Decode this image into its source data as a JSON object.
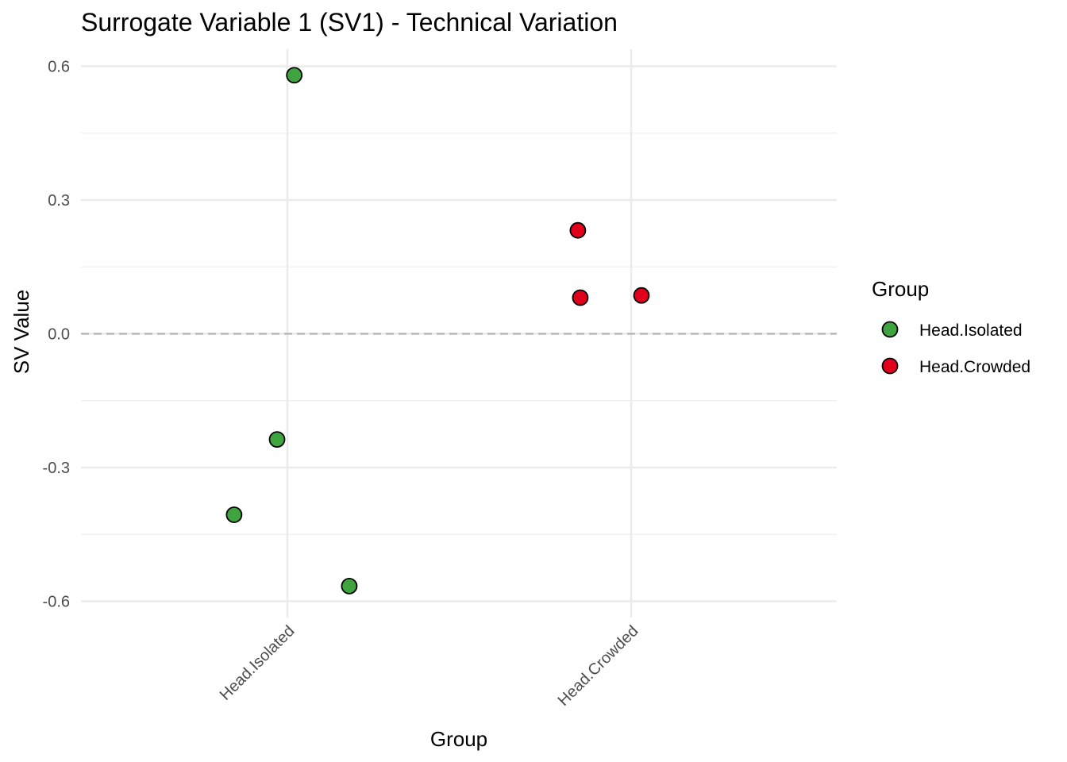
{
  "chart_data": {
    "type": "scatter",
    "title": "Surrogate Variable 1 (SV1) - Technical Variation",
    "xlabel": "Group",
    "ylabel": "SV Value",
    "categories": [
      "Head.Isolated",
      "Head.Crowded"
    ],
    "y_ticks": [
      0.6,
      0.3,
      0.0,
      -0.3,
      -0.6
    ],
    "y_tick_labels": [
      "0.6",
      "0.3",
      "0.0",
      "-0.3",
      "-0.6"
    ],
    "ylim": [
      -0.66,
      0.64
    ],
    "grid": true,
    "reference_line": {
      "y": 0.0,
      "style": "dashed",
      "color": "#b3b3b3"
    },
    "legend": {
      "title": "Group",
      "position": "right"
    },
    "series": [
      {
        "name": "Head.Isolated",
        "color": "#3fa33f",
        "points": [
          {
            "category": "Head.Isolated",
            "jitter": 0.02,
            "y": 0.58
          },
          {
            "category": "Head.Isolated",
            "jitter": -0.03,
            "y": -0.237
          },
          {
            "category": "Head.Isolated",
            "jitter": -0.155,
            "y": -0.406
          },
          {
            "category": "Head.Isolated",
            "jitter": 0.18,
            "y": -0.566
          }
        ]
      },
      {
        "name": "Head.Crowded",
        "color": "#e0001b",
        "points": [
          {
            "category": "Head.Crowded",
            "jitter": -0.155,
            "y": 0.232
          },
          {
            "category": "Head.Crowded",
            "jitter": -0.148,
            "y": 0.081
          },
          {
            "category": "Head.Crowded",
            "jitter": 0.03,
            "y": 0.086
          }
        ]
      }
    ]
  }
}
